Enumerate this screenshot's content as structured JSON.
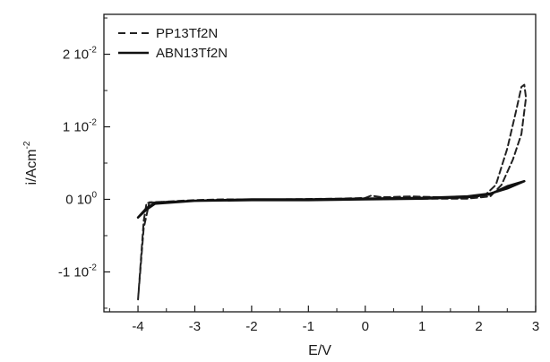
{
  "chart_data": {
    "type": "line",
    "title": "",
    "xlabel": "E/V",
    "ylabel": "i/Acm",
    "ylabel_sup": "-2",
    "xlim": [
      -4.6,
      3.0
    ],
    "ylim": [
      -0.0155,
      0.0255
    ],
    "grid": false,
    "legend_position": "top-left",
    "x_ticks": [
      {
        "value": -4,
        "label": "-4"
      },
      {
        "value": -3,
        "label": "-3"
      },
      {
        "value": -2,
        "label": "-2"
      },
      {
        "value": -1,
        "label": "-1"
      },
      {
        "value": 0,
        "label": "0"
      },
      {
        "value": 1,
        "label": "1"
      },
      {
        "value": 2,
        "label": "2"
      },
      {
        "value": 3,
        "label": "3"
      }
    ],
    "y_ticks": [
      {
        "value": -0.01,
        "base": "-1 10",
        "exp": "-2"
      },
      {
        "value": 0,
        "base": "0 10",
        "exp": "0"
      },
      {
        "value": 0.01,
        "base": "1 10",
        "exp": "-2"
      },
      {
        "value": 0.02,
        "base": "2 10",
        "exp": "-2"
      }
    ],
    "series": [
      {
        "name": "PP13Tf2N",
        "style": "dashed",
        "color": "#222222",
        "points": [
          [
            -4.0,
            -0.0138
          ],
          [
            -3.9,
            -0.003
          ],
          [
            -3.85,
            -0.0005
          ],
          [
            -3.5,
            -0.0003
          ],
          [
            -3.0,
            -0.0001
          ],
          [
            -2.5,
            0.0
          ],
          [
            -1.5,
            0.0
          ],
          [
            -0.5,
            0.0001
          ],
          [
            0.0,
            0.0002
          ],
          [
            0.1,
            0.0005
          ],
          [
            0.3,
            0.0003
          ],
          [
            0.8,
            0.0004
          ],
          [
            1.3,
            0.0003
          ],
          [
            1.8,
            0.0003
          ],
          [
            2.1,
            0.0005
          ],
          [
            2.3,
            0.002
          ],
          [
            2.5,
            0.007
          ],
          [
            2.65,
            0.012
          ],
          [
            2.75,
            0.0155
          ],
          [
            2.8,
            0.0158
          ],
          [
            2.83,
            0.014
          ],
          [
            2.75,
            0.009
          ],
          [
            2.6,
            0.0055
          ],
          [
            2.4,
            0.002
          ],
          [
            2.2,
            0.0004
          ],
          [
            1.8,
            0.0001
          ],
          [
            1.0,
            0.0001
          ],
          [
            0.0,
            0.0
          ],
          [
            -1.0,
            0.0
          ],
          [
            -2.0,
            -0.0001
          ],
          [
            -3.0,
            -0.0002
          ],
          [
            -3.8,
            -0.0004
          ],
          [
            -3.9,
            -0.004
          ],
          [
            -4.0,
            -0.0138
          ]
        ]
      },
      {
        "name": "ABN13Tf2N",
        "style": "solid",
        "color": "#111111",
        "points": [
          [
            -4.0,
            -0.0025
          ],
          [
            -3.85,
            -0.0012
          ],
          [
            -3.7,
            -0.0005
          ],
          [
            -3.0,
            -0.0002
          ],
          [
            -2.0,
            0.0
          ],
          [
            -1.0,
            0.0
          ],
          [
            0.0,
            0.0001
          ],
          [
            1.0,
            0.0002
          ],
          [
            1.8,
            0.0004
          ],
          [
            2.2,
            0.0008
          ],
          [
            2.5,
            0.0015
          ],
          [
            2.8,
            0.0025
          ],
          [
            2.5,
            0.0018
          ],
          [
            2.2,
            0.0007
          ],
          [
            1.8,
            0.0003
          ],
          [
            1.0,
            0.0001
          ],
          [
            0.0,
            0.0
          ],
          [
            -1.0,
            -0.0001
          ],
          [
            -2.0,
            -0.0001
          ],
          [
            -3.0,
            -0.0002
          ],
          [
            -3.7,
            -0.0006
          ],
          [
            -3.85,
            -0.0014
          ],
          [
            -4.0,
            -0.0025
          ]
        ]
      }
    ]
  }
}
